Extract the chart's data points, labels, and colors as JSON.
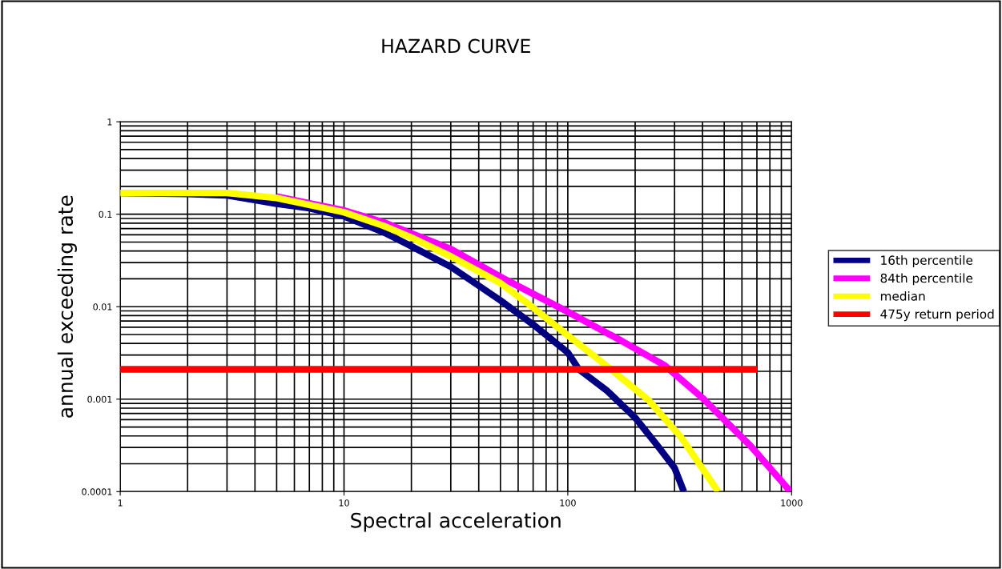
{
  "chart_data": {
    "type": "line",
    "title": "HAZARD CURVE",
    "xlabel": "Spectral acceleration",
    "ylabel": "annual exceeding rate",
    "log": "xy",
    "xlim": [
      1,
      1000
    ],
    "ylim": [
      0.0001,
      1
    ],
    "xticks": [
      1,
      10,
      100,
      1000
    ],
    "yticks": [
      0.0001,
      0.001,
      0.01,
      0.1,
      1
    ],
    "grid": true,
    "legend": "right",
    "marker": "none",
    "line_style": "solid",
    "series": [
      {
        "name": "16th percentile",
        "color": "#000080",
        "x": [
          1,
          2,
          3,
          5,
          7,
          10,
          15,
          20,
          30,
          50,
          70,
          100,
          112,
          150,
          200,
          250,
          300,
          330
        ],
        "values": [
          0.17,
          0.166,
          0.16,
          0.13,
          0.116,
          0.095,
          0.064,
          0.045,
          0.027,
          0.0117,
          0.0064,
          0.0032,
          0.0021,
          0.00123,
          0.00063,
          0.00032,
          0.00018,
          0.0001
        ]
      },
      {
        "name": "84th percentile",
        "color": "#ff00ff",
        "x": [
          5,
          10,
          15,
          20,
          30,
          51,
          101,
          176,
          272,
          400,
          657,
          990
        ],
        "values": [
          0.155,
          0.11,
          0.082,
          0.062,
          0.042,
          0.0205,
          0.0087,
          0.0042,
          0.0023,
          0.00103,
          0.00031,
          0.0001
        ]
      },
      {
        "name": "median",
        "color": "#ffff00",
        "x": [
          1,
          2,
          3,
          5,
          10,
          15,
          20,
          30,
          50,
          67,
          101,
          156,
          230,
          320,
          470
        ],
        "values": [
          0.17,
          0.17,
          0.17,
          0.15,
          0.105,
          0.075,
          0.056,
          0.035,
          0.018,
          0.0106,
          0.0048,
          0.0021,
          0.00097,
          0.00039,
          0.0001
        ]
      },
      {
        "name": "475y return period",
        "color": "#ff0000",
        "x": [
          1,
          700
        ],
        "values": [
          0.0021,
          0.0021
        ]
      }
    ]
  }
}
